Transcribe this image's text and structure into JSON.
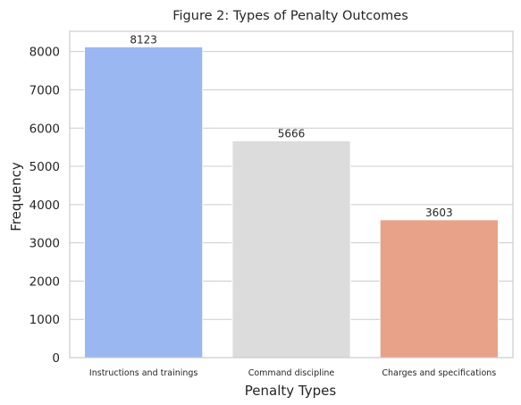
{
  "chart_data": {
    "type": "bar",
    "title": "Figure 2: Types of Penalty Outcomes",
    "xlabel": "Penalty Types",
    "ylabel": "Frequency",
    "categories": [
      "Instructions and trainings",
      "Command discipline",
      "Charges and specifications"
    ],
    "values": [
      8123,
      5666,
      3603
    ],
    "data_labels": [
      "8123",
      "5666",
      "3603"
    ],
    "bar_colors": [
      "#9bb7f2",
      "#dcdcdc",
      "#e8a28a"
    ],
    "ylim": [
      0,
      8530
    ],
    "yticks": [
      0,
      1000,
      2000,
      3000,
      4000,
      5000,
      6000,
      7000,
      8000
    ],
    "ytick_labels": [
      "0",
      "1000",
      "2000",
      "3000",
      "4000",
      "5000",
      "6000",
      "7000",
      "8000"
    ],
    "grid": "horizontal"
  }
}
